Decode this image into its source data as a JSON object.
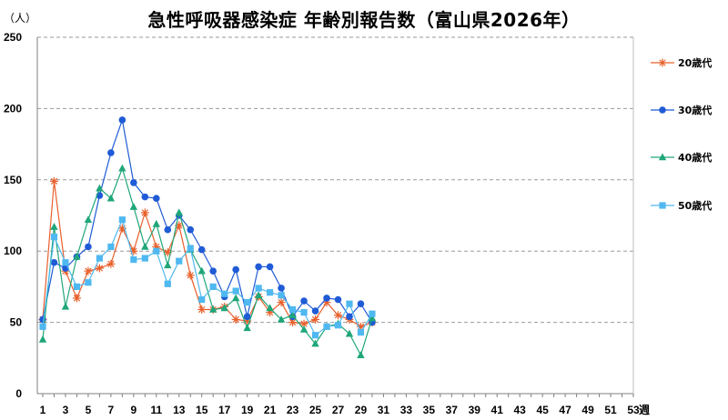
{
  "chart_data": {
    "type": "line",
    "title": "急性呼吸器感染症 年齢別報告数（富山県2026年）",
    "ylabel": "（人）",
    "xlabel": "週",
    "ylim": [
      0,
      250
    ],
    "yticks": [
      0,
      50,
      100,
      150,
      200,
      250
    ],
    "xlim": [
      1,
      53
    ],
    "xtick_labels": [
      "1",
      "3",
      "5",
      "7",
      "9",
      "11",
      "13",
      "15",
      "17",
      "19",
      "21",
      "23",
      "25",
      "27",
      "29",
      "31",
      "33",
      "35",
      "37",
      "39",
      "41",
      "43",
      "45",
      "47",
      "49",
      "51",
      "53"
    ],
    "grid": "horizontal dashed",
    "legend_position": "right",
    "x": [
      1,
      2,
      3,
      4,
      5,
      6,
      7,
      8,
      9,
      10,
      11,
      12,
      13,
      14,
      15,
      16,
      17,
      18,
      19,
      20,
      21,
      22,
      23,
      24,
      25,
      26,
      27,
      28,
      29,
      30
    ],
    "series": [
      {
        "name": "20歳代",
        "color": "#E8602C",
        "marker": "asterisk",
        "values": [
          52,
          149,
          86,
          67,
          86,
          88,
          91,
          116,
          100,
          127,
          103,
          99,
          118,
          83,
          59,
          59,
          61,
          52,
          51,
          68,
          57,
          64,
          50,
          49,
          52,
          64,
          55,
          52,
          47,
          50
        ]
      },
      {
        "name": "30歳代",
        "color": "#1F5BD6",
        "marker": "circle",
        "values": [
          52,
          92,
          88,
          96,
          103,
          139,
          169,
          192,
          148,
          138,
          137,
          115,
          125,
          115,
          101,
          86,
          68,
          87,
          54,
          89,
          89,
          74,
          54,
          65,
          58,
          67,
          66,
          54,
          63,
          50
        ]
      },
      {
        "name": "40歳代",
        "color": "#1FA67A",
        "marker": "triangle",
        "values": [
          38,
          117,
          61,
          96,
          122,
          144,
          137,
          158,
          131,
          103,
          119,
          90,
          127,
          101,
          86,
          59,
          60,
          67,
          46,
          69,
          60,
          52,
          55,
          45,
          35,
          47,
          49,
          42,
          27,
          53
        ]
      },
      {
        "name": "50歳代",
        "color": "#4FB8F0",
        "marker": "square",
        "values": [
          47,
          110,
          92,
          75,
          78,
          95,
          103,
          122,
          94,
          95,
          100,
          77,
          93,
          102,
          66,
          75,
          70,
          72,
          64,
          74,
          71,
          69,
          59,
          57,
          41,
          47,
          48,
          63,
          43,
          56
        ]
      }
    ]
  }
}
